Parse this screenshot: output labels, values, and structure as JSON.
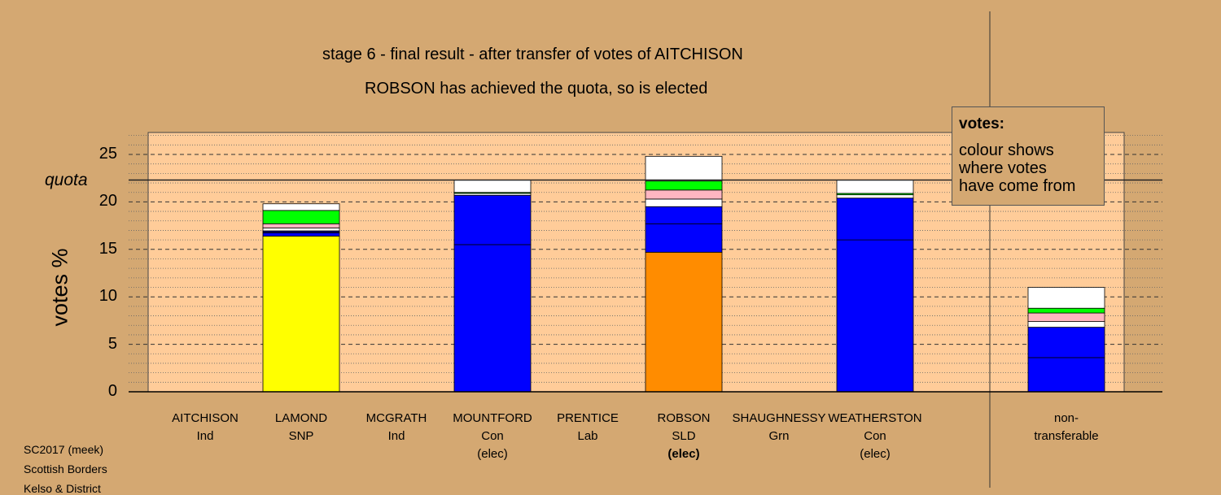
{
  "chart_data": {
    "type": "bar",
    "title": "stage 6 - final result - after transfer of votes of AITCHISON",
    "subtitle": "ROBSON has achieved the quota, so is elected",
    "ylabel": "votes %",
    "ylim": [
      0,
      27.5
    ],
    "yticks": [
      0,
      5,
      10,
      15,
      20,
      25
    ],
    "quota": 22.3,
    "quota_label": "quota",
    "candidates": [
      {
        "name": "AITCHISON",
        "party": "Ind",
        "status": "",
        "segments": []
      },
      {
        "name": "LAMOND",
        "party": "SNP",
        "status": "",
        "segments": [
          {
            "from": "SNP",
            "value": 16.4,
            "color": "#ffff00"
          },
          {
            "from": "Con",
            "value": 0.35,
            "color": "#0000ff"
          },
          {
            "from": "Ind",
            "value": 0.2,
            "color": "#000066"
          },
          {
            "from": "other",
            "value": 0.3,
            "color": "#ffffff"
          },
          {
            "from": "Lab",
            "value": 0.45,
            "color": "#ffb6c1"
          },
          {
            "from": "Grn",
            "value": 1.4,
            "color": "#00ff00"
          },
          {
            "from": "Ind",
            "value": 0.7,
            "color": "#ffffff"
          }
        ]
      },
      {
        "name": "MCGRATH",
        "party": "Ind",
        "status": "",
        "segments": []
      },
      {
        "name": "MOUNTFORD",
        "party": "Con",
        "status": "(elec)",
        "segments": [
          {
            "from": "Con",
            "value": 15.5,
            "color": "#0000ff"
          },
          {
            "from": "Con",
            "value": 5.2,
            "color": "#0000ff"
          },
          {
            "from": "other",
            "value": 0.2,
            "color": "#ffffff"
          },
          {
            "from": "Grn",
            "value": 0.1,
            "color": "#00ff00"
          },
          {
            "from": "Ind",
            "value": 1.3,
            "color": "#ffffff"
          }
        ]
      },
      {
        "name": "PRENTICE",
        "party": "Lab",
        "status": "",
        "segments": []
      },
      {
        "name": "ROBSON",
        "party": "SLD",
        "status": "(elec)",
        "status_bold": true,
        "segments": [
          {
            "from": "SLD",
            "value": 14.7,
            "color": "#ff8c00"
          },
          {
            "from": "Con",
            "value": 3.0,
            "color": "#0000ff"
          },
          {
            "from": "Con",
            "value": 1.8,
            "color": "#0000ff"
          },
          {
            "from": "other",
            "value": 0.8,
            "color": "#ffffff"
          },
          {
            "from": "Lab",
            "value": 0.95,
            "color": "#ffb6c1"
          },
          {
            "from": "Grn",
            "value": 0.95,
            "color": "#00ff00"
          },
          {
            "from": "Ind",
            "value": 2.6,
            "color": "#ffffff"
          }
        ]
      },
      {
        "name": "SHAUGHNESSY",
        "party": "Grn",
        "status": "",
        "segments": []
      },
      {
        "name": "WEATHERSTON",
        "party": "Con",
        "status": "(elec)",
        "segments": [
          {
            "from": "Con",
            "value": 16.0,
            "color": "#0000ff"
          },
          {
            "from": "Con",
            "value": 4.4,
            "color": "#0000ff"
          },
          {
            "from": "other",
            "value": 0.35,
            "color": "#ffffff"
          },
          {
            "from": "Grn",
            "value": 0.15,
            "color": "#00ff00"
          },
          {
            "from": "Ind",
            "value": 1.4,
            "color": "#ffffff"
          }
        ]
      },
      {
        "name": "non-",
        "party": "transferable",
        "status": "",
        "segments": [
          {
            "from": "Con",
            "value": 3.6,
            "color": "#0000ff"
          },
          {
            "from": "Con",
            "value": 3.2,
            "color": "#0000ff"
          },
          {
            "from": "other",
            "value": 0.6,
            "color": "#ffffff"
          },
          {
            "from": "Lab",
            "value": 0.9,
            "color": "#ffb6c1"
          },
          {
            "from": "Grn",
            "value": 0.5,
            "color": "#00ff00"
          },
          {
            "from": "Ind",
            "value": 2.2,
            "color": "#ffffff"
          }
        ]
      }
    ],
    "legend": {
      "head": "votes:",
      "lines": [
        "colour shows",
        "where votes",
        "have come from"
      ],
      "placement": "top-right"
    }
  },
  "footer": [
    "SC2017 (meek)",
    "Scottish Borders",
    "Kelso & District"
  ],
  "colors": {
    "background": "#d4a872",
    "plot": "#ffcc99"
  }
}
